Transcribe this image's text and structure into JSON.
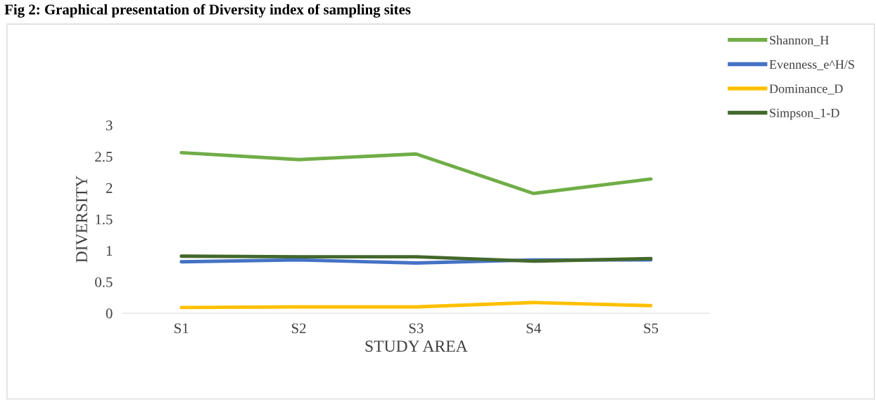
{
  "chart_data": {
    "type": "line",
    "title": "Fig 2: Graphical presentation of Diversity index of sampling sites",
    "xlabel": "STUDY AREA",
    "ylabel": "DIVERSITY",
    "categories": [
      "S1",
      "S2",
      "S3",
      "S4",
      "S5"
    ],
    "series": [
      {
        "name": "Shannon_H",
        "color": "#70ad47",
        "values": [
          2.56,
          2.45,
          2.54,
          1.91,
          2.14
        ]
      },
      {
        "name": "Evenness_e^H/S",
        "color": "#4472c4",
        "values": [
          0.82,
          0.85,
          0.8,
          0.85,
          0.85
        ]
      },
      {
        "name": "Dominance_D",
        "color": "#ffc000",
        "values": [
          0.09,
          0.1,
          0.1,
          0.17,
          0.12
        ]
      },
      {
        "name": "Simpson_1-D",
        "color": "#43682b",
        "values": [
          0.91,
          0.9,
          0.9,
          0.83,
          0.87
        ]
      }
    ],
    "ylim": [
      0,
      3
    ],
    "yticks": [
      0,
      0.5,
      1,
      1.5,
      2,
      2.5,
      3
    ],
    "grid": false,
    "legend": "top right",
    "marker": "none",
    "line_style": "solid"
  }
}
